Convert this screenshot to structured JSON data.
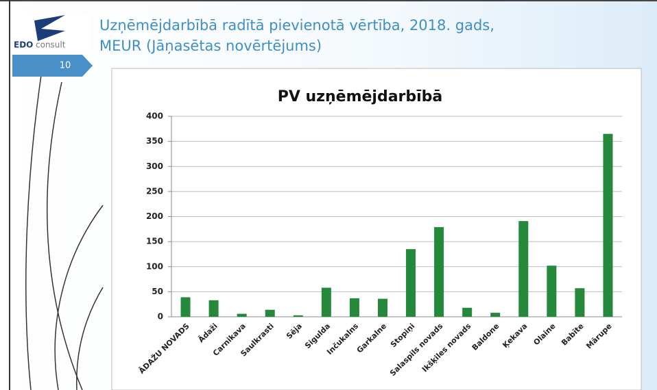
{
  "slide": {
    "logo": [
      "EDO",
      "consult"
    ],
    "number": "10",
    "title": [
      "Uzņēmējdarbībā radītā pievienotā vērtība, 2018. gads,",
      "MEUR (Jāņasētas novērtējums)"
    ]
  },
  "chart_data": {
    "type": "bar",
    "title": "PV uzņēmējdarbībā",
    "categories": [
      "ĀDAŽU NOVADS",
      "Ādaži",
      "Carnikava",
      "Saulkrasti",
      "Sēja",
      "Sigulda",
      "Inčukalns",
      "Garkalne",
      "Stopiņi",
      "Salaspils novads",
      "Ikšķiles novads",
      "Baldone",
      "Ķekava",
      "Olaine",
      "Babīte",
      "Mārupe"
    ],
    "values": [
      39,
      33,
      6,
      14,
      3,
      58,
      37,
      36,
      135,
      179,
      18,
      8,
      191,
      102,
      57,
      365
    ],
    "color": "#24893a",
    "ylim": [
      0,
      400
    ],
    "yticks": [
      0,
      50,
      100,
      150,
      200,
      250,
      300,
      350,
      400
    ],
    "grid": true
  }
}
